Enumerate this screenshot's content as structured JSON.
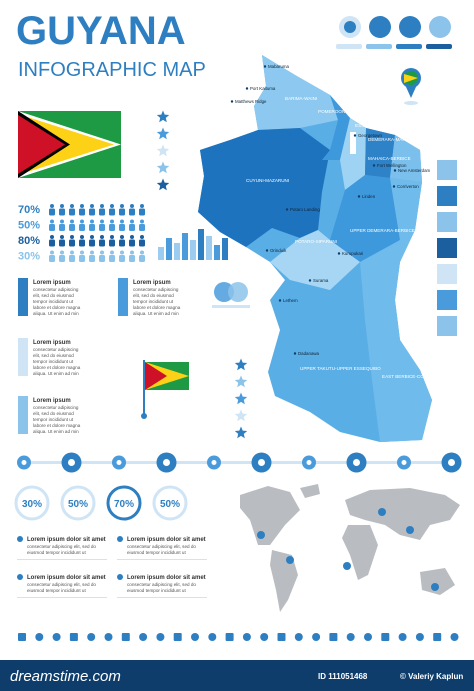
{
  "header": {
    "title": "GUYANA",
    "subtitle": "INFOGRAPHIC MAP"
  },
  "map_labels": [
    "Mabaruma",
    "Port Kaituma",
    "BARIMA-WAINI",
    "Matthews Ridge",
    "POMEROON-SUPENAAM",
    "ESSEQUIBO ISLANDS-WEST DEMERARA",
    "Georgetown",
    "DEMERARA-MAHAICA",
    "CUYUNI-MAZARUNI",
    "MAHAICA-BERBICE",
    "New Amsterdam",
    "Fort Wellington",
    "Corriverton",
    "Linden",
    "Potaro Landing",
    "UPPER DEMERARA-BERBICE",
    "POTARO-SIPARUNI",
    "Orinduik",
    "Kurupukari",
    "Surama",
    "Lethem",
    "Dadanawa",
    "UPPER TAKUTU-UPPER ESSEQUIBO",
    "EAST BERBICE-CORENTYNE"
  ],
  "people_stats": [
    "70%",
    "50%",
    "80%",
    "30%"
  ],
  "text_blocks": [
    {
      "title": "Lorem ipsum",
      "lines": [
        "consectetur adipiscing",
        "elit, sed do eiusmod",
        "tempor incididunt ut",
        "labore et dolore magna",
        "aliqua. Ut enim ad min"
      ]
    },
    {
      "title": "Lorem ipsum",
      "lines": [
        "consectetur adipiscing",
        "elit, sed do eiusmod",
        "tempor incididunt ut",
        "labore et dolore magna",
        "aliqua. Ut enim ad min"
      ]
    },
    {
      "title": "Lorem ipsum",
      "lines": [
        "consectetur adipiscing",
        "elit, sed do eiusmod",
        "tempor incididunt ut",
        "labore et dolore magna",
        "aliqua. Ut enim ad min"
      ]
    },
    {
      "title": "Lorem ipsum",
      "lines": [
        "consectetur adipiscing",
        "elit, sed do eiusmod",
        "tempor incididunt ut",
        "labore et dolore magna",
        "aliqua. Ut enim ad min"
      ]
    }
  ],
  "circle_stats": [
    "30%",
    "50%",
    "70%",
    "50%"
  ],
  "list_items": [
    {
      "title": "Lorem ipsum dolor sit amet",
      "lines": [
        "consectetur adipiscing elit, sed do",
        "eiusmod tempor incididunt ut"
      ]
    },
    {
      "title": "Lorem ipsum dolor sit amet",
      "lines": [
        "consectetur adipiscing elit, sed do",
        "eiusmod tempor incididunt ut"
      ]
    },
    {
      "title": "Lorem ipsum dolor sit amet",
      "lines": [
        "consectetur adipiscing elit, sed do",
        "eiusmod tempor incididunt ut"
      ]
    },
    {
      "title": "Lorem ipsum dolor sit amet",
      "lines": [
        "consectetur adipiscing elit, sed do",
        "eiusmod tempor incididunt ut"
      ]
    }
  ],
  "footer": {
    "site": "dreamstime.com",
    "id": "ID 111051468",
    "author": "© Valeriy Kaplun"
  }
}
